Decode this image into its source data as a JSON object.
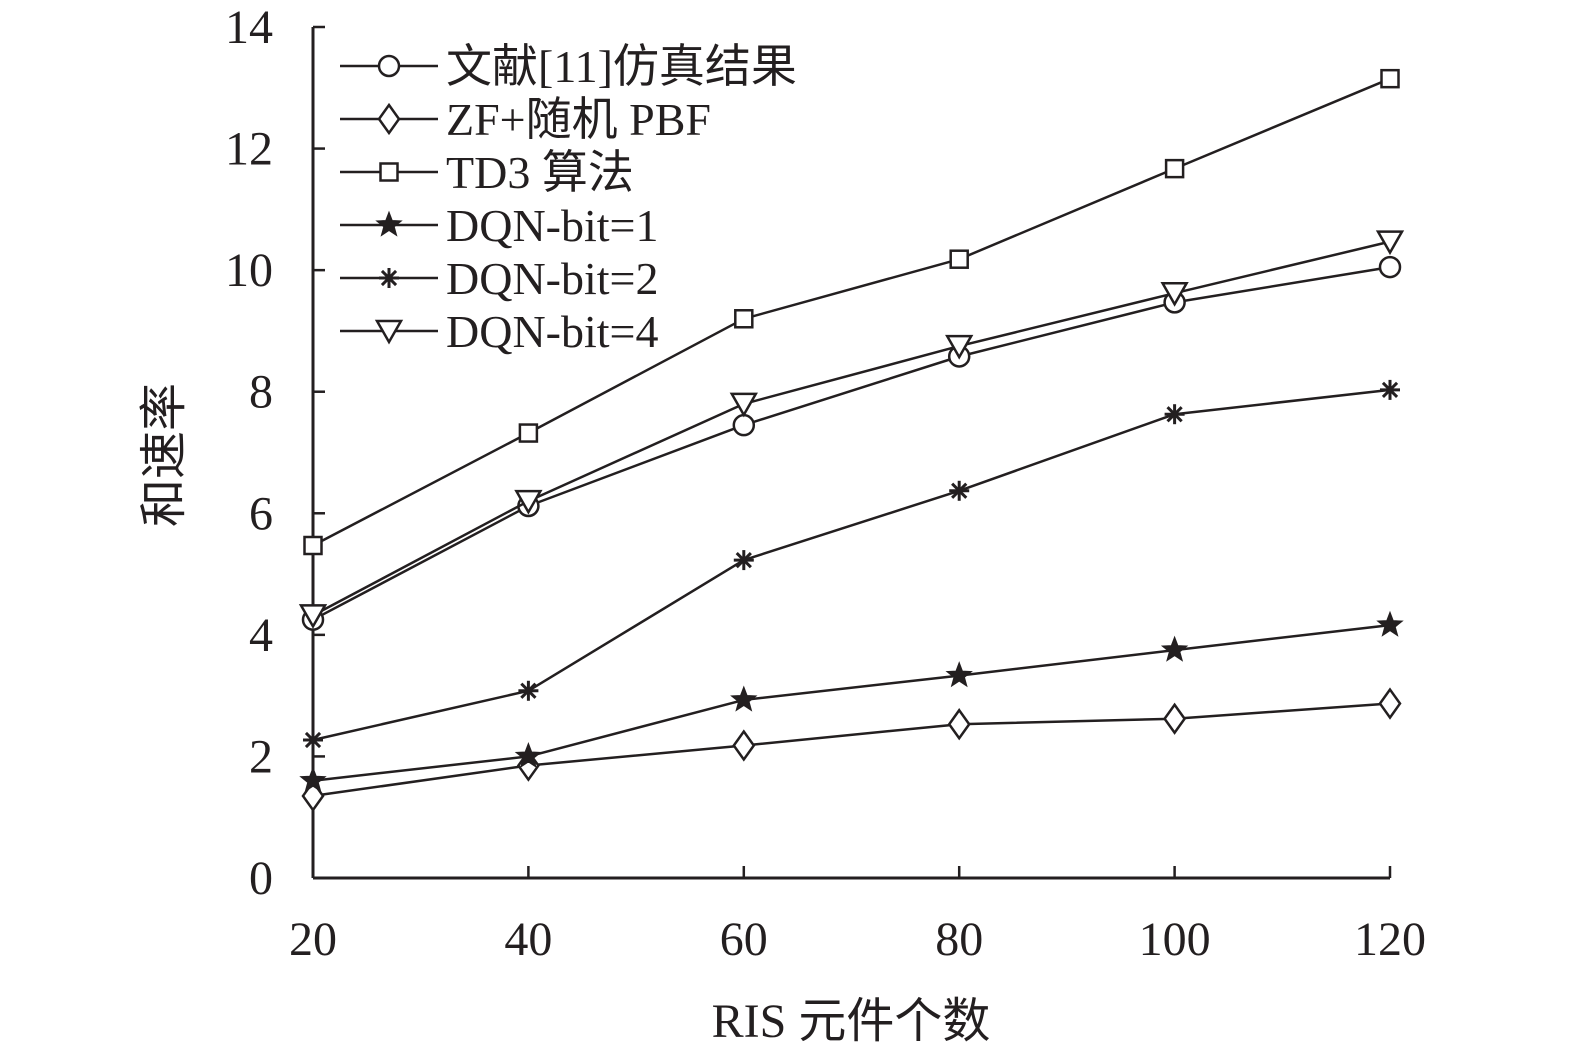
{
  "chart_data": {
    "type": "line",
    "title": "",
    "xlabel": "RIS 元件个数",
    "ylabel": "和速率",
    "x": [
      20,
      40,
      60,
      80,
      100,
      120
    ],
    "xticks": [
      "20",
      "40",
      "60",
      "80",
      "100",
      "120"
    ],
    "yticks": [
      "0",
      "2",
      "4",
      "6",
      "8",
      "10",
      "12",
      "14"
    ],
    "xlim": [
      20,
      120
    ],
    "ylim": [
      0,
      14
    ],
    "grid": false,
    "legend_position": "top-left",
    "line_color": "#231f20",
    "series": [
      {
        "name": "文献[11]仿真结果",
        "marker": "circle",
        "values": [
          4.25,
          6.12,
          7.45,
          8.58,
          9.47,
          10.05
        ]
      },
      {
        "name": "ZF+随机 PBF",
        "marker": "diamond",
        "values": [
          1.35,
          1.85,
          2.18,
          2.53,
          2.62,
          2.87
        ]
      },
      {
        "name": "TD3 算法",
        "marker": "square",
        "values": [
          5.47,
          7.32,
          9.2,
          10.18,
          11.67,
          13.15
        ]
      },
      {
        "name": "DQN-bit=1",
        "marker": "star",
        "values": [
          1.6,
          2.0,
          2.93,
          3.33,
          3.75,
          4.16
        ]
      },
      {
        "name": "DQN-bit=2",
        "marker": "asterisk",
        "values": [
          2.27,
          3.08,
          5.23,
          6.37,
          7.63,
          8.03
        ]
      },
      {
        "name": "DQN-bit=4",
        "marker": "triangle-down",
        "values": [
          4.32,
          6.2,
          7.8,
          8.75,
          9.62,
          10.47
        ]
      }
    ]
  }
}
